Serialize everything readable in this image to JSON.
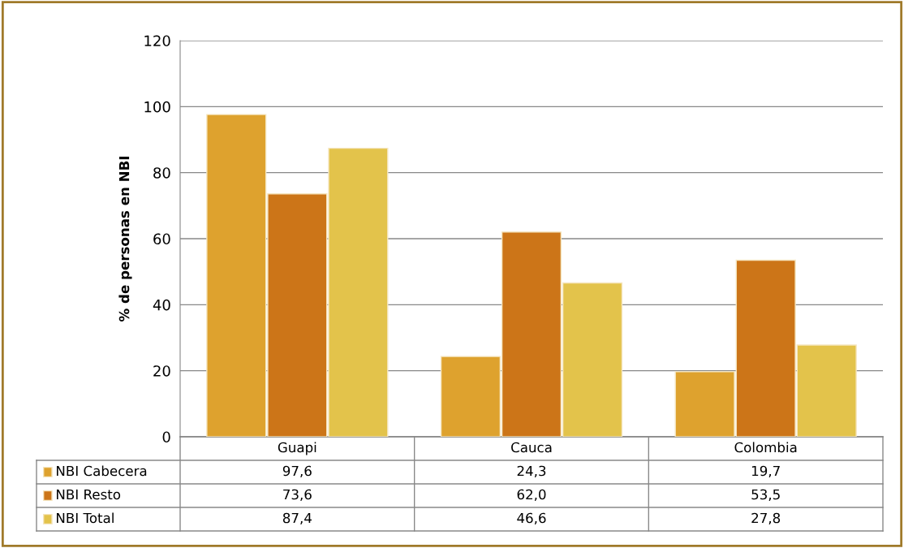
{
  "chart_data": {
    "type": "bar",
    "ylabel": "% de personas en NBI",
    "categories": [
      "Guapi",
      "Cauca",
      "Colombia"
    ],
    "series": [
      {
        "name": "NBI Cabecera",
        "color": "#dea22e",
        "values": [
          97.6,
          24.3,
          19.7
        ],
        "value_labels": [
          "97,6",
          "24,3",
          "19,7"
        ]
      },
      {
        "name": "NBI Resto",
        "color": "#cc7518",
        "values": [
          73.6,
          62.0,
          53.5
        ],
        "value_labels": [
          "73,6",
          "62,0",
          "53,5"
        ]
      },
      {
        "name": "NBI Total",
        "color": "#e3c34b",
        "values": [
          87.4,
          46.6,
          27.8
        ],
        "value_labels": [
          "87,4",
          "46,6",
          "27,8"
        ]
      }
    ],
    "ylim": [
      0,
      120
    ],
    "yticks": [
      0,
      20,
      40,
      60,
      80,
      100,
      120
    ],
    "grid": "y",
    "legend": "bottom"
  }
}
